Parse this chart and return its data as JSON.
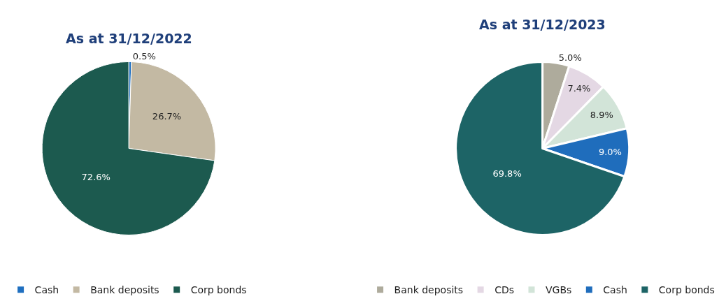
{
  "chart_data": [
    {
      "type": "pie",
      "title": "As at 31/12/2022",
      "categories": [
        "Cash",
        "Bank deposits",
        "Corp bonds"
      ],
      "values": [
        0.5,
        26.7,
        72.6
      ],
      "colors": [
        "#1f6fc0",
        "#c3b9a3",
        "#1c5a4f"
      ],
      "value_labels": [
        "0.5%",
        "26.7%",
        "72.6%"
      ],
      "legend": "bottom"
    },
    {
      "type": "pie",
      "title": "As at 31/12/2023",
      "categories": [
        "Bank deposits",
        "CDs",
        "VGBs",
        "Cash",
        "Corp bonds"
      ],
      "values": [
        5.0,
        7.4,
        8.9,
        9.0,
        69.8
      ],
      "colors": [
        "#aeab9c",
        "#e4d8e4",
        "#d2e4d8",
        "#1f6dbc",
        "#1d6466"
      ],
      "value_labels": [
        "5.0%",
        "7.4%",
        "8.9%",
        "9.0%",
        "69.8%"
      ],
      "legend": "bottom"
    }
  ]
}
